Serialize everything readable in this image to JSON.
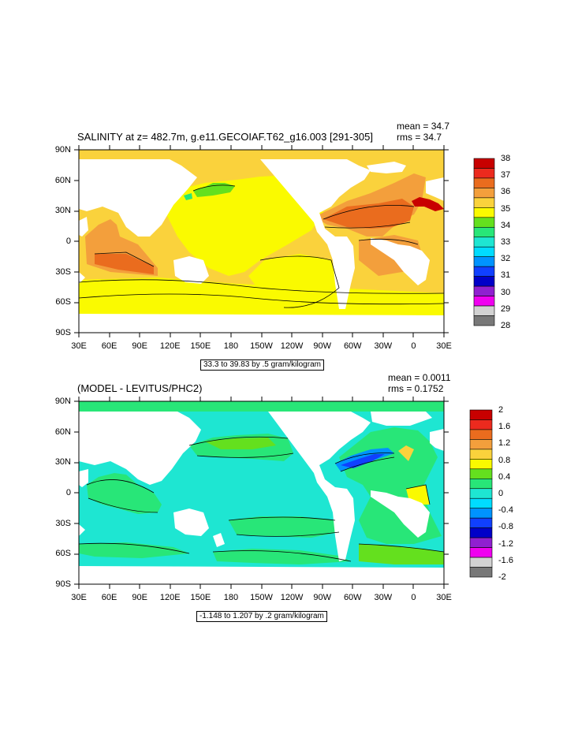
{
  "colors": {
    "land": "#ffffff",
    "contour": "#000000"
  },
  "panels": [
    {
      "id": "top",
      "title": "SALINITY at z= 482.7m, g.e11.GECOIAF.T62_g16.003 [291-305]",
      "mean": "mean = 34.7",
      "rms": "rms = 34.7",
      "info": "33.3 to 39.83 by .5 gram/kilogram",
      "lat_labels": [
        "90N",
        "60N",
        "30N",
        "0",
        "30S",
        "60S",
        "90S"
      ],
      "lon_labels": [
        "30E",
        "60E",
        "90E",
        "120E",
        "150E",
        "180",
        "150W",
        "120W",
        "90W",
        "60W",
        "30W",
        "0",
        "30E"
      ],
      "legend": {
        "labels": [
          "38",
          "37",
          "36",
          "35",
          "34",
          "33",
          "32",
          "31",
          "30",
          "29",
          "28"
        ],
        "colors": [
          "#c80000",
          "#ec2a1e",
          "#ea6c1e",
          "#f39f3c",
          "#fad23c",
          "#fafa00",
          "#64e01e",
          "#28e678",
          "#1ee6d2",
          "#00dcff",
          "#0093ff",
          "#1040ff",
          "#0000c8",
          "#9020d0",
          "#f000f0",
          "#d2d2d2",
          "#787878"
        ]
      }
    },
    {
      "id": "bottom",
      "title": "(MODEL - LEVITUS/PHC2)",
      "mean": "mean = 0.0011",
      "rms": "rms = 0.1752",
      "info": "-1.148 to 1.207 by .2 gram/kilogram",
      "lat_labels": [
        "90N",
        "60N",
        "30N",
        "0",
        "30S",
        "60S",
        "90S"
      ],
      "lon_labels": [
        "30E",
        "60E",
        "90E",
        "120E",
        "150E",
        "180",
        "150W",
        "120W",
        "90W",
        "60W",
        "30W",
        "0",
        "30E"
      ],
      "legend": {
        "labels": [
          "2",
          "1.6",
          "1.2",
          "0.8",
          "0.4",
          "0",
          "-0.4",
          "-0.8",
          "-1.2",
          "-1.6",
          "-2"
        ],
        "colors": [
          "#c80000",
          "#ec2a1e",
          "#ea6c1e",
          "#f39f3c",
          "#fad23c",
          "#fafa00",
          "#64e01e",
          "#28e678",
          "#1ee6d2",
          "#00dcff",
          "#0093ff",
          "#1040ff",
          "#0000c8",
          "#9020d0",
          "#f000f0",
          "#d2d2d2",
          "#787878"
        ]
      }
    }
  ]
}
